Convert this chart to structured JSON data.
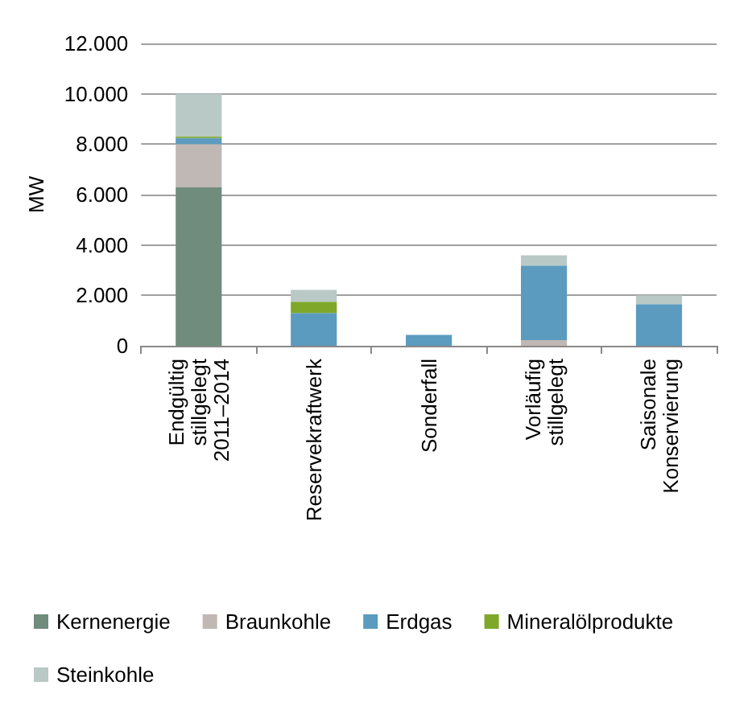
{
  "chart_data": {
    "type": "bar",
    "stacked": true,
    "ylabel": "MW",
    "categories": [
      "Endgültig stillgelegt 2011–2014",
      "Reservekraftwerk",
      "Sonderfall",
      "Vorläufig stillgelegt",
      "Saisonale Konservierung"
    ],
    "series": [
      {
        "name": "Kernenergie",
        "color": "#6f8c7c",
        "values": [
          6300,
          0,
          0,
          0,
          0
        ]
      },
      {
        "name": "Braunkohle",
        "color": "#bfb8b4",
        "values": [
          1700,
          0,
          0,
          220,
          0
        ]
      },
      {
        "name": "Erdgas",
        "color": "#5b9bbf",
        "values": [
          250,
          1300,
          430,
          2960,
          1650
        ]
      },
      {
        "name": "Mineralölprodukte",
        "color": "#7fa82a",
        "values": [
          60,
          450,
          0,
          0,
          0
        ]
      },
      {
        "name": "Steinkohle",
        "color": "#b9c9c5",
        "values": [
          1690,
          470,
          0,
          410,
          350
        ]
      }
    ],
    "ylim": [
      0,
      12000
    ],
    "yticks": [
      {
        "value": 0,
        "label": "0"
      },
      {
        "value": 2000,
        "label": "2.000"
      },
      {
        "value": 4000,
        "label": "4.000"
      },
      {
        "value": 6000,
        "label": "6.000"
      },
      {
        "value": 8000,
        "label": "8.000"
      },
      {
        "value": 10000,
        "label": "10.000"
      },
      {
        "value": 12000,
        "label": "12.000"
      }
    ],
    "grid": "y",
    "legend": "bottom"
  }
}
